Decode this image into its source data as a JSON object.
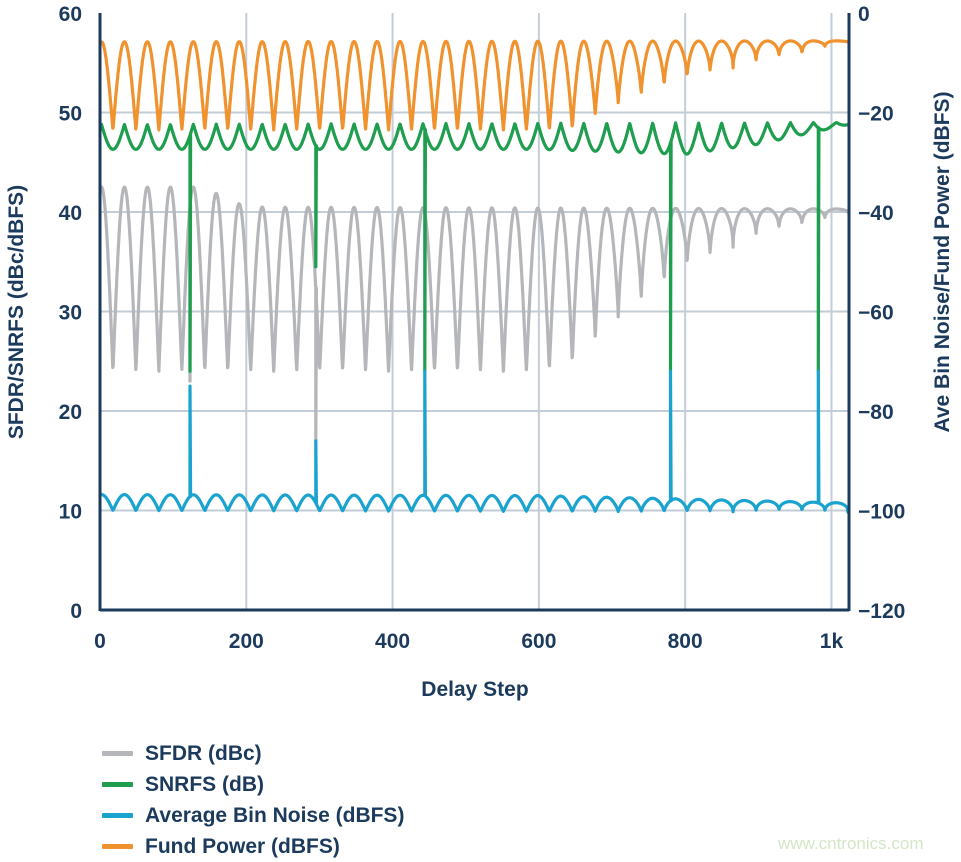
{
  "chart_data": {
    "type": "line",
    "xlabel": "Delay Step",
    "ylabel_left": "SFDR/SNRFS (dBc/dBFS)",
    "ylabel_right": "Ave Bin Noise/Fund Power (dBFS)",
    "xlim": [
      0,
      1024
    ],
    "ylim_left": [
      0,
      60
    ],
    "ylim_right": [
      -120,
      0
    ],
    "x_ticks": [
      {
        "value": 0,
        "label": "0"
      },
      {
        "value": 200,
        "label": "200"
      },
      {
        "value": 400,
        "label": "400"
      },
      {
        "value": 600,
        "label": "600"
      },
      {
        "value": 800,
        "label": "800"
      },
      {
        "value": 1000,
        "label": "1k"
      }
    ],
    "y_ticks_left": [
      {
        "value": 0,
        "label": "0"
      },
      {
        "value": 10,
        "label": "10"
      },
      {
        "value": 20,
        "label": "20"
      },
      {
        "value": 30,
        "label": "30"
      },
      {
        "value": 40,
        "label": "40"
      },
      {
        "value": 50,
        "label": "50"
      },
      {
        "value": 60,
        "label": "60"
      }
    ],
    "y_ticks_right": [
      {
        "value": 0,
        "label": "0"
      },
      {
        "value": -20,
        "label": "−20"
      },
      {
        "value": -40,
        "label": "−40"
      },
      {
        "value": -60,
        "label": "−60"
      },
      {
        "value": -80,
        "label": "−80"
      },
      {
        "value": -100,
        "label": "−100"
      },
      {
        "value": -120,
        "label": "−120"
      }
    ],
    "grid": true,
    "legend_position": "bottom-left",
    "oscillation_period_steps": 31.4,
    "first_dip_step": 17.7,
    "series": [
      {
        "name": "SFDR (dBc)",
        "axis": "left",
        "color": "#b4b6b9",
        "shape": "dip",
        "peak": [
          [
            0,
            42.5
          ],
          [
            140,
            42.5
          ],
          [
            200,
            40.5
          ],
          [
            1024,
            40.3
          ]
        ],
        "trough": [
          [
            0,
            24
          ],
          [
            600,
            24
          ],
          [
            640,
            24.5
          ],
          [
            700,
            29
          ],
          [
            800,
            34.5
          ],
          [
            900,
            37.5
          ],
          [
            960,
            38.5
          ],
          [
            1024,
            40
          ]
        ],
        "spikes": [
          {
            "x": 123,
            "value": 23
          },
          {
            "x": 295,
            "value": 17
          }
        ]
      },
      {
        "name": "SNRFS (dB)",
        "axis": "left",
        "color": "#1e9e4e",
        "shape": "peak",
        "peak": [
          [
            0,
            48.8
          ],
          [
            1024,
            49
          ]
        ],
        "trough": [
          [
            0,
            46.3
          ],
          [
            600,
            46.3
          ],
          [
            800,
            45.8
          ],
          [
            900,
            46.8
          ],
          [
            1024,
            48.8
          ]
        ],
        "spikes": [
          {
            "x": 123,
            "value": 24
          },
          {
            "x": 295,
            "value": 34.5
          },
          {
            "x": 444,
            "value": 24
          },
          {
            "x": 780,
            "value": 24
          },
          {
            "x": 982,
            "value": 24
          }
        ]
      },
      {
        "name": "Average Bin Noise (dBFS)",
        "axis": "right",
        "color": "#1ba3cf",
        "shape": "dip",
        "peak": [
          [
            0,
            -96.8
          ],
          [
            600,
            -97
          ],
          [
            1024,
            -98.5
          ]
        ],
        "trough": [
          [
            0,
            -100
          ],
          [
            1024,
            -100.3
          ]
        ],
        "spikes": [
          {
            "x": 123,
            "value": -75
          },
          {
            "x": 295,
            "value": -86
          },
          {
            "x": 444,
            "value": -72
          },
          {
            "x": 780,
            "value": -72
          },
          {
            "x": 982,
            "value": -72
          }
        ]
      },
      {
        "name": "Fund Power (dBFS)",
        "axis": "right",
        "color": "#f0922e",
        "shape": "dip",
        "peak": [
          [
            0,
            -5.8
          ],
          [
            1024,
            -5.6
          ]
        ],
        "trough": [
          [
            0,
            -23.5
          ],
          [
            600,
            -23.5
          ],
          [
            642,
            -23.5
          ],
          [
            700,
            -18.5
          ],
          [
            800,
            -13
          ],
          [
            900,
            -10
          ],
          [
            960,
            -8.5
          ],
          [
            1000,
            -6.5
          ],
          [
            1024,
            -5.8
          ]
        ],
        "spikes": []
      }
    ]
  },
  "watermark": "www.cntronics.com"
}
